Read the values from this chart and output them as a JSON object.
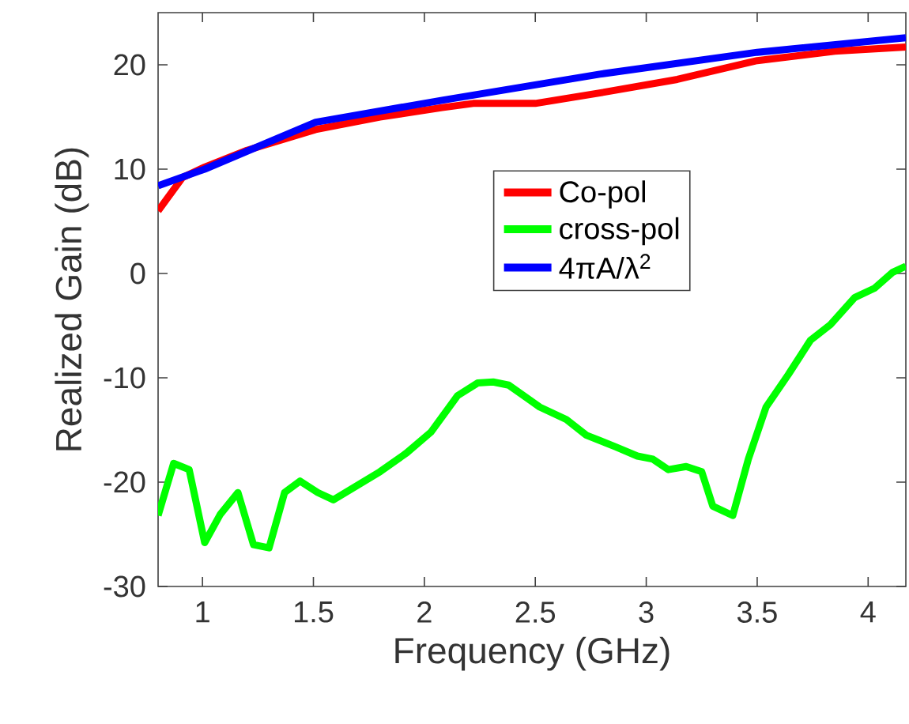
{
  "chart_data": {
    "type": "line",
    "xlabel": "Frequency (GHz)",
    "ylabel": "Realized Gain (dB)",
    "xlim": [
      0.8,
      4.17
    ],
    "ylim": [
      -30,
      25
    ],
    "xticks": [
      1,
      1.5,
      2,
      2.5,
      3,
      3.5,
      4
    ],
    "yticks": [
      -30,
      -20,
      -10,
      0,
      10,
      20
    ],
    "grid": false,
    "legend": "center",
    "line_style": "solid",
    "marker": "none",
    "series": [
      {
        "name": "Co-pol",
        "color": "#ff0000",
        "x": [
          0.8,
          0.91,
          1.01,
          1.2,
          1.51,
          1.8,
          2.08,
          2.22,
          2.5,
          2.79,
          3.14,
          3.5,
          3.85,
          4.17
        ],
        "values": [
          6.0,
          9.2,
          10.2,
          11.8,
          13.8,
          15.0,
          15.9,
          16.3,
          16.3,
          17.3,
          18.6,
          20.4,
          21.3,
          21.7
        ]
      },
      {
        "name": "cross-pol",
        "color": "#00ff00",
        "x": [
          0.8,
          0.87,
          0.94,
          1.01,
          1.08,
          1.16,
          1.23,
          1.3,
          1.37,
          1.44,
          1.52,
          1.59,
          1.8,
          1.92,
          2.03,
          2.15,
          2.24,
          2.31,
          2.38,
          2.52,
          2.64,
          2.73,
          2.86,
          2.96,
          3.03,
          3.1,
          3.18,
          3.25,
          3.3,
          3.39,
          3.46,
          3.54,
          3.64,
          3.74,
          3.83,
          3.94,
          4.03,
          4.11,
          4.17
        ],
        "values": [
          -23.2,
          -18.2,
          -18.8,
          -25.8,
          -23.1,
          -21,
          -26,
          -26.3,
          -21,
          -19.9,
          -21,
          -21.7,
          -19,
          -17.2,
          -15.2,
          -11.7,
          -10.5,
          -10.4,
          -10.7,
          -12.8,
          -14,
          -15.5,
          -16.6,
          -17.5,
          -17.8,
          -18.8,
          -18.5,
          -19,
          -22.3,
          -23.2,
          -17.8,
          -12.8,
          -9.7,
          -6.4,
          -4.9,
          -2.3,
          -1.4,
          0.1,
          0.7
        ]
      },
      {
        "name": "4πA/λ$^{2}$",
        "color": "#0000ff",
        "x": [
          0.8,
          1.01,
          1.51,
          2.08,
          2.79,
          3.5,
          4.17
        ],
        "values": [
          8.4,
          10.0,
          14.5,
          16.6,
          19.1,
          21.2,
          22.6
        ]
      }
    ]
  }
}
